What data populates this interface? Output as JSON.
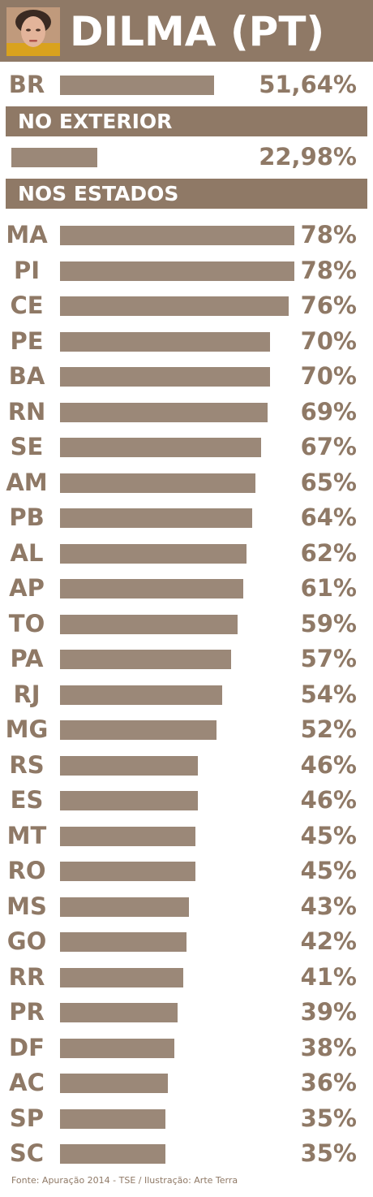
{
  "header": {
    "title": "DILMA (PT)"
  },
  "colors": {
    "accent": "#8f7966",
    "bar": "#9b8878"
  },
  "sections": {
    "abroad": "NO EXTERIOR",
    "states": "NOS ESTADOS"
  },
  "footer": "Fonte: Apuração 2014 - TSE / Ilustração: Arte Terra",
  "chart_data": {
    "type": "bar",
    "orientation": "horizontal",
    "national": {
      "label": "BR",
      "value": 51.64,
      "text": "51,64%"
    },
    "abroad": {
      "value": 22.98,
      "text": "22,98%"
    },
    "states": [
      {
        "label": "MA",
        "value": 78,
        "text": "78%"
      },
      {
        "label": "PI",
        "value": 78,
        "text": "78%"
      },
      {
        "label": "CE",
        "value": 76,
        "text": "76%"
      },
      {
        "label": "PE",
        "value": 70,
        "text": "70%"
      },
      {
        "label": "BA",
        "value": 70,
        "text": "70%"
      },
      {
        "label": "RN",
        "value": 69,
        "text": "69%"
      },
      {
        "label": "SE",
        "value": 67,
        "text": "67%"
      },
      {
        "label": "AM",
        "value": 65,
        "text": "65%"
      },
      {
        "label": "PB",
        "value": 64,
        "text": "64%"
      },
      {
        "label": "AL",
        "value": 62,
        "text": "62%"
      },
      {
        "label": "AP",
        "value": 61,
        "text": "61%"
      },
      {
        "label": "TO",
        "value": 59,
        "text": "59%"
      },
      {
        "label": "PA",
        "value": 57,
        "text": "57%"
      },
      {
        "label": "RJ",
        "value": 54,
        "text": "54%"
      },
      {
        "label": "MG",
        "value": 52,
        "text": "52%"
      },
      {
        "label": "RS",
        "value": 46,
        "text": "46%"
      },
      {
        "label": "ES",
        "value": 46,
        "text": "46%"
      },
      {
        "label": "MT",
        "value": 45,
        "text": "45%"
      },
      {
        "label": "RO",
        "value": 45,
        "text": "45%"
      },
      {
        "label": "MS",
        "value": 43,
        "text": "43%"
      },
      {
        "label": "GO",
        "value": 42,
        "text": "42%"
      },
      {
        "label": "RR",
        "value": 41,
        "text": "41%"
      },
      {
        "label": "PR",
        "value": 39,
        "text": "39%"
      },
      {
        "label": "DF",
        "value": 38,
        "text": "38%"
      },
      {
        "label": "AC",
        "value": 36,
        "text": "36%"
      },
      {
        "label": "SP",
        "value": 35,
        "text": "35%"
      },
      {
        "label": "SC",
        "value": 35,
        "text": "35%"
      }
    ]
  }
}
